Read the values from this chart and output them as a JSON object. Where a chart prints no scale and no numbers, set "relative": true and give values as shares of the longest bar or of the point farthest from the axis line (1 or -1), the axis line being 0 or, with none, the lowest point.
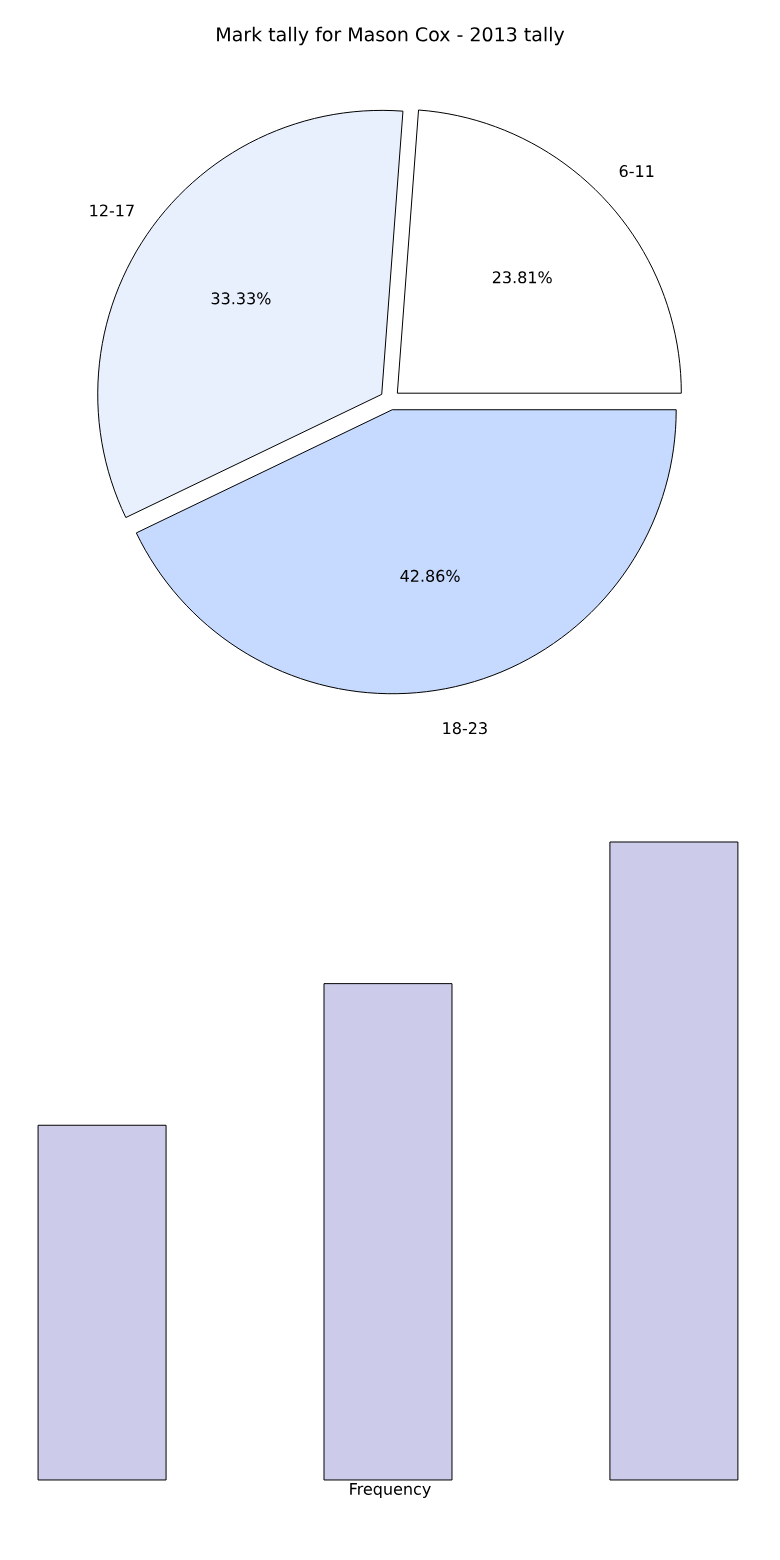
{
  "chart_data": [
    {
      "type": "pie",
      "title": "Mark tally for Mason Cox - 2013 tally",
      "categories": [
        "6-11",
        "12-17",
        "18-23"
      ],
      "values": [
        23.81,
        33.33,
        42.86
      ],
      "colors": [
        "#ffffff",
        "#e8f0fe",
        "#c6d9fe"
      ],
      "value_labels": [
        "23.81%",
        "33.33%",
        "42.86%"
      ]
    },
    {
      "type": "bar",
      "relative": true,
      "categories": [
        null,
        null,
        null
      ],
      "values": [
        0.556,
        0.778,
        1
      ],
      "color": "#ccccea",
      "xlabel": "Frequency"
    }
  ]
}
